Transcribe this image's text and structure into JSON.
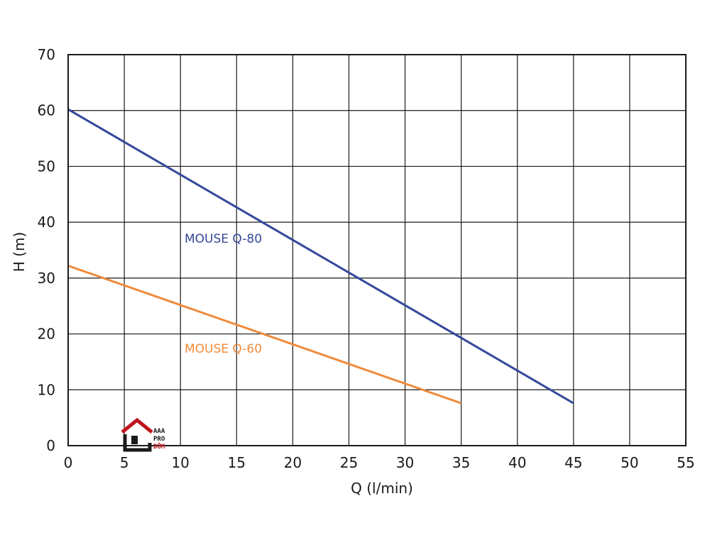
{
  "chart_data": {
    "type": "line",
    "xlabel": "Q (l/min)",
    "ylabel": "H (m)",
    "xlim": [
      0,
      55
    ],
    "ylim": [
      0,
      70
    ],
    "x_ticks": [
      "0",
      "5",
      "10",
      "15",
      "20",
      "25",
      "30",
      "35",
      "40",
      "45",
      "50",
      "55"
    ],
    "y_ticks": [
      "0",
      "10",
      "20",
      "30",
      "40",
      "50",
      "60",
      "70"
    ],
    "grid": true,
    "series": [
      {
        "name": "MOUSE Q-80",
        "color": "#34489a",
        "x": [
          0,
          45
        ],
        "y": [
          60.2,
          7.6
        ]
      },
      {
        "name": "MOUSE Q-60",
        "color": "#f08a3a",
        "x": [
          0,
          35
        ],
        "y": [
          32.2,
          7.6
        ]
      }
    ]
  },
  "logo": {
    "lines": [
      "AAA",
      "PRO",
      "DŮM"
    ],
    "icon": "house-icon"
  }
}
